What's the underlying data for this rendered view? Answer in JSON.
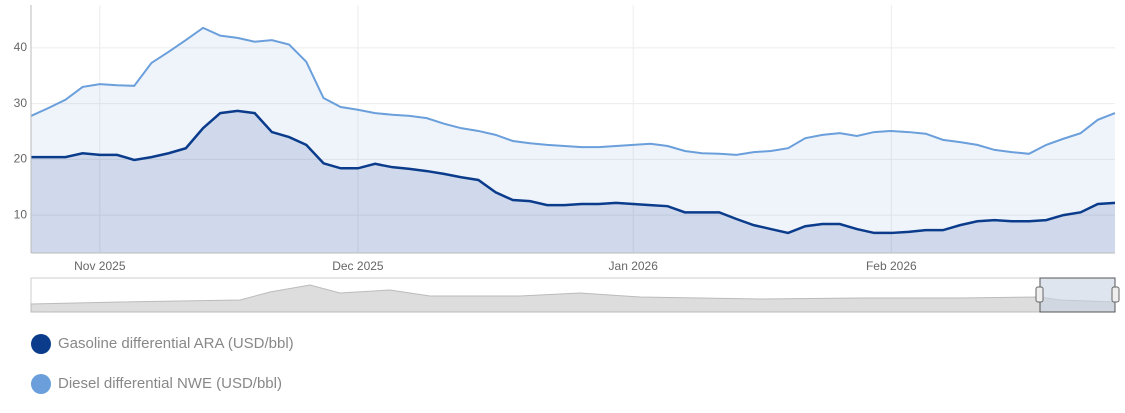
{
  "chart_data": {
    "type": "area",
    "categories": [
      null,
      null,
      null,
      null,
      "Nov 2025",
      null,
      null,
      null,
      null,
      null,
      null,
      null,
      null,
      null,
      null,
      null,
      null,
      null,
      null,
      "Dec 2025",
      null,
      null,
      null,
      null,
      null,
      null,
      null,
      null,
      null,
      null,
      null,
      null,
      null,
      null,
      null,
      "Jan 2026",
      null,
      null,
      null,
      null,
      null,
      null,
      null,
      null,
      null,
      null,
      null,
      null,
      null,
      null,
      "Feb 2026",
      null,
      null,
      null,
      null,
      null,
      null,
      null,
      null,
      null,
      null,
      null,
      null,
      null
    ],
    "series": [
      {
        "name": "Gasoline differential ARA (USD/bbl)",
        "color": "#0b3c8c",
        "values": [
          20.4,
          20.4,
          20.4,
          21.1,
          20.8,
          20.8,
          19.9,
          20.4,
          21.1,
          22.0,
          25.6,
          28.3,
          28.7,
          28.3,
          24.9,
          24.0,
          22.6,
          19.3,
          18.4,
          18.4,
          19.2,
          18.6,
          18.3,
          17.9,
          17.4,
          16.8,
          16.3,
          14.1,
          12.7,
          12.5,
          11.8,
          11.8,
          12.0,
          12.0,
          12.2,
          12.0,
          11.8,
          11.6,
          10.5,
          10.5,
          10.5,
          9.3,
          8.2,
          7.5,
          6.8,
          8.0,
          8.4,
          8.4,
          7.5,
          6.8,
          6.8,
          7.0,
          7.3,
          7.3,
          8.2,
          8.9,
          9.1,
          8.9,
          8.9,
          9.1,
          10.0,
          10.5,
          12.0,
          12.2
        ]
      },
      {
        "name": "Diesel differential NWE (USD/bbl)",
        "color": "#6a9fdb",
        "values": [
          27.8,
          29.2,
          30.7,
          33.0,
          33.5,
          33.3,
          33.2,
          37.3,
          39.3,
          41.4,
          43.6,
          42.2,
          41.8,
          41.1,
          41.4,
          40.6,
          37.5,
          31.0,
          29.4,
          28.9,
          28.3,
          28.0,
          27.8,
          27.4,
          26.4,
          25.6,
          25.1,
          24.4,
          23.3,
          22.9,
          22.6,
          22.4,
          22.2,
          22.2,
          22.4,
          22.6,
          22.8,
          22.4,
          21.5,
          21.1,
          21.0,
          20.8,
          21.3,
          21.5,
          22.0,
          23.8,
          24.4,
          24.7,
          24.2,
          24.9,
          25.1,
          24.9,
          24.6,
          23.5,
          23.1,
          22.6,
          21.7,
          21.3,
          21.0,
          22.6,
          23.7,
          24.7,
          27.1,
          28.3
        ]
      }
    ],
    "ylim": [
      3.2,
      47.7
    ],
    "yticks": [
      10,
      20,
      30,
      40
    ],
    "grid": true
  }
}
